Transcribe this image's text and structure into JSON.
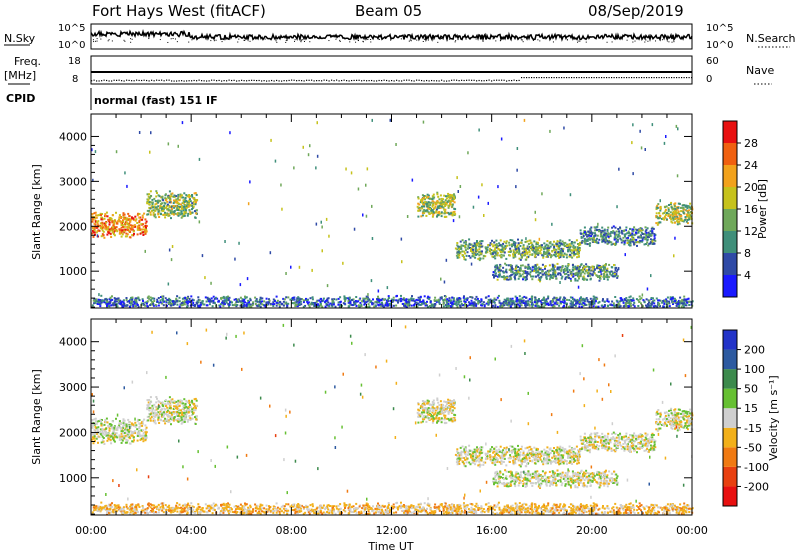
{
  "header": {
    "title": "Fort Hays West (fitACF)",
    "beam": "Beam 05",
    "date": "08/Sep/2019"
  },
  "strip_labels": {
    "nsky": "N.Sky",
    "freq": "Freq.",
    "freq_unit": "[MHz]",
    "cpid": "CPID",
    "nsearch": "N.Search",
    "nave": "Nave",
    "cpid_text": "normal (fast) 151 IF"
  },
  "strip_ticks": {
    "nsky_top": "10^5",
    "nsky_bottom": "10^0",
    "nsearch_top": "10^5",
    "nsearch_bottom": "10^0",
    "freq_top": "18",
    "freq_bottom": "8",
    "nave_top": "60",
    "nave_bottom": "0"
  },
  "axes": {
    "xlabel": "Time UT",
    "ylabel": "Slant Range [km]",
    "x_ticks": [
      "00:00",
      "04:00",
      "08:00",
      "12:00",
      "16:00",
      "20:00",
      "00:00"
    ],
    "y_ticks": [
      "1000",
      "2000",
      "3000",
      "4000"
    ]
  },
  "colorbars": {
    "power_label": "Power [dB]",
    "power_ticks": [
      "4",
      "8",
      "12",
      "16",
      "20",
      "24",
      "28"
    ],
    "power_colors": [
      "#1a1aff",
      "#2f4aa6",
      "#3f8f7a",
      "#6fa85a",
      "#c6c21c",
      "#f2a21c",
      "#f06010",
      "#e81010"
    ],
    "velocity_label": "Velocity [m s⁻¹]",
    "velocity_ticks": [
      "200",
      "100",
      "50",
      "15",
      "-15",
      "-50",
      "-100",
      "-200"
    ],
    "velocity_colors": [
      "#2233c8",
      "#2d5aa0",
      "#3c8a4c",
      "#66c032",
      "#cfcfcf",
      "#f2b01a",
      "#f07a12",
      "#e84010",
      "#e81010"
    ]
  },
  "chart_data": [
    {
      "type": "heatmap",
      "name": "power",
      "xlabel": "Time UT",
      "ylabel": "Slant Range [km]",
      "xlim": [
        0,
        24
      ],
      "ylim": [
        180,
        4500
      ],
      "colorbar_label": "Power [dB]",
      "colorbar_range": [
        0,
        30
      ],
      "regions": [
        {
          "t_start": 0.0,
          "t_end": 2.2,
          "range_center": 2050,
          "thickness": 450,
          "level": 22
        },
        {
          "t_start": 2.2,
          "t_end": 4.2,
          "range_center": 2500,
          "thickness": 500,
          "level": 14
        },
        {
          "t_start": 13.0,
          "t_end": 14.5,
          "range_center": 2500,
          "thickness": 500,
          "level": 14
        },
        {
          "t_start": 14.5,
          "t_end": 19.5,
          "range_center": 1500,
          "thickness": 350,
          "level": 12
        },
        {
          "t_start": 16.0,
          "t_end": 21.0,
          "range_center": 1000,
          "thickness": 300,
          "level": 10
        },
        {
          "t_start": 19.5,
          "t_end": 22.5,
          "range_center": 1800,
          "thickness": 350,
          "level": 9
        },
        {
          "t_start": 22.5,
          "t_end": 24.0,
          "range_center": 2300,
          "thickness": 400,
          "level": 15
        },
        {
          "t_start": 0.0,
          "t_end": 24.0,
          "range_center": 300,
          "thickness": 250,
          "level": 7
        }
      ]
    },
    {
      "type": "heatmap",
      "name": "velocity",
      "xlabel": "Time UT",
      "ylabel": "Slant Range [km]",
      "xlim": [
        0,
        24
      ],
      "ylim": [
        180,
        4500
      ],
      "colorbar_label": "Velocity [m s⁻¹]",
      "colorbar_range": [
        -200,
        200
      ],
      "regions": [
        {
          "t_start": 0.0,
          "t_end": 2.2,
          "range_center": 2050,
          "thickness": 450,
          "level": 0
        },
        {
          "t_start": 2.2,
          "t_end": 4.2,
          "range_center": 2500,
          "thickness": 500,
          "level": 0
        },
        {
          "t_start": 13.0,
          "t_end": 14.5,
          "range_center": 2500,
          "thickness": 500,
          "level": 0
        },
        {
          "t_start": 14.5,
          "t_end": 19.5,
          "range_center": 1500,
          "thickness": 350,
          "level": 0
        },
        {
          "t_start": 16.0,
          "t_end": 21.0,
          "range_center": 1000,
          "thickness": 300,
          "level": 0
        },
        {
          "t_start": 19.5,
          "t_end": 22.5,
          "range_center": 1800,
          "thickness": 350,
          "level": 0
        },
        {
          "t_start": 22.5,
          "t_end": 24.0,
          "range_center": 2300,
          "thickness": 400,
          "level": 0
        },
        {
          "t_start": 0.0,
          "t_end": 24.0,
          "range_center": 300,
          "thickness": 250,
          "level": -40
        }
      ]
    }
  ]
}
